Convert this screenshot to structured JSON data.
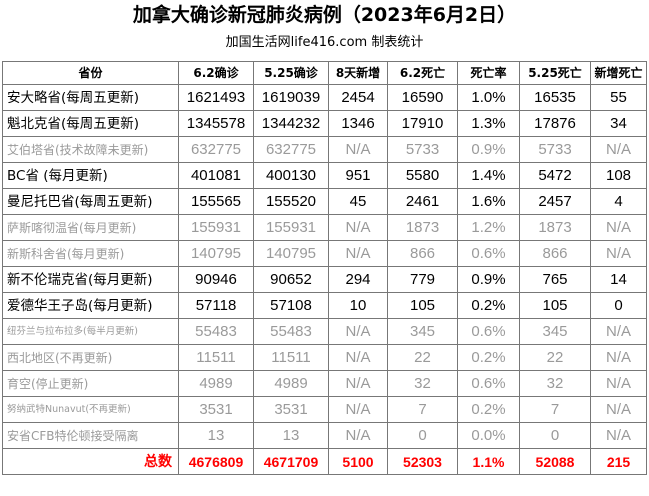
{
  "title": "加拿大确诊新冠肺炎病例（2023年6月2日）",
  "subtitle": "加国生活网life416.com 制表统计",
  "table": {
    "headers": [
      "省份",
      "6.2确诊",
      "5.25确诊",
      "8天新增",
      "6.2死亡",
      "死亡率",
      "5.25死亡",
      "新增死亡"
    ],
    "rows": [
      {
        "province": "安大略省(每周五更新)",
        "c62": "1621493",
        "c525": "1619039",
        "new8": "2454",
        "d62": "16590",
        "rate": "1.0%",
        "d525": "16535",
        "newd": "55"
      },
      {
        "province": "魁北克省(每周五更新)",
        "c62": "1345578",
        "c525": "1344232",
        "new8": "1346",
        "d62": "17910",
        "rate": "1.3%",
        "d525": "17876",
        "newd": "34"
      },
      {
        "province": "艾伯塔省(技术故障未更新)",
        "c62": "632775",
        "c525": "632775",
        "new8": "N/A",
        "d62": "5733",
        "rate": "0.9%",
        "d525": "5733",
        "newd": "N/A"
      },
      {
        "province": "BC省 (每月更新)",
        "c62": "401081",
        "c525": "400130",
        "new8": "951",
        "d62": "5580",
        "rate": "1.4%",
        "d525": "5472",
        "newd": "108"
      },
      {
        "province": "曼尼托巴省(每周五更新)",
        "c62": "155565",
        "c525": "155520",
        "new8": "45",
        "d62": "2461",
        "rate": "1.6%",
        "d525": "2457",
        "newd": "4"
      },
      {
        "province": "萨斯喀彻温省(每月更新)",
        "c62": "155931",
        "c525": "155931",
        "new8": "N/A",
        "d62": "1873",
        "rate": "1.2%",
        "d525": "1873",
        "newd": "N/A"
      },
      {
        "province": "新斯科舍省(每月更新)",
        "c62": "140795",
        "c525": "140795",
        "new8": "N/A",
        "d62": "866",
        "rate": "0.6%",
        "d525": "866",
        "newd": "N/A"
      },
      {
        "province": "新不伦瑞克省(每月更新)",
        "c62": "90946",
        "c525": "90652",
        "new8": "294",
        "d62": "779",
        "rate": "0.9%",
        "d525": "765",
        "newd": "14"
      },
      {
        "province": "爱德华王子岛(每月更新)",
        "c62": "57118",
        "c525": "57108",
        "new8": "10",
        "d62": "105",
        "rate": "0.2%",
        "d525": "105",
        "newd": "0"
      },
      {
        "province": "纽芬兰与拉布拉多(每半月更新)",
        "c62": "55483",
        "c525": "55483",
        "new8": "N/A",
        "d62": "345",
        "rate": "0.6%",
        "d525": "345",
        "newd": "N/A"
      },
      {
        "province": "西北地区(不再更新)",
        "c62": "11511",
        "c525": "11511",
        "new8": "N/A",
        "d62": "22",
        "rate": "0.2%",
        "d525": "22",
        "newd": "N/A"
      },
      {
        "province": "育空(停止更新)",
        "c62": "4989",
        "c525": "4989",
        "new8": "N/A",
        "d62": "32",
        "rate": "0.6%",
        "d525": "32",
        "newd": "N/A"
      },
      {
        "province": "努纳武特Nunavut(不再更新)",
        "c62": "3531",
        "c525": "3531",
        "new8": "N/A",
        "d62": "7",
        "rate": "0.2%",
        "d525": "7",
        "newd": "N/A"
      },
      {
        "province": "安省CFB特伦顿接受隔离",
        "c62": "13",
        "c525": "13",
        "new8": "N/A",
        "d62": "0",
        "rate": "0.0%",
        "d525": "0",
        "newd": "N/A"
      }
    ],
    "total": {
      "province": "总数",
      "c62": "4676809",
      "c525": "4671709",
      "new8": "5100",
      "d62": "52303",
      "rate": "1.1%",
      "d525": "52088",
      "newd": "215"
    }
  },
  "colors": {
    "total_text": "#ff0000",
    "inactive_text": "#9a9a9a",
    "grid": "#777777"
  }
}
